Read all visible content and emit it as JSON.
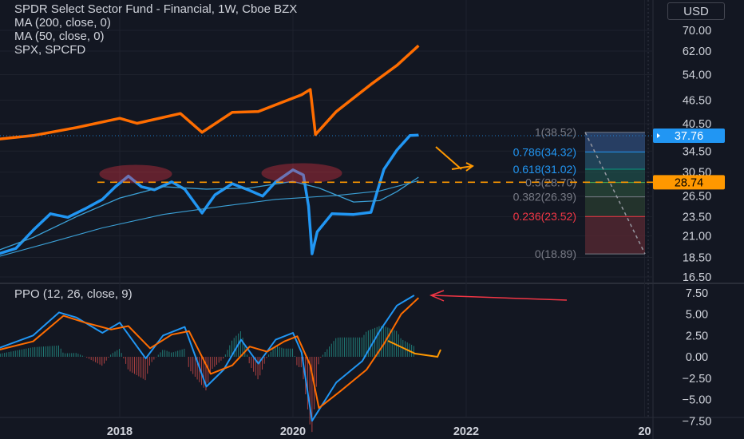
{
  "header": {
    "title": "SPDR Select Sector Fund - Financial, 1W, Cboe BZX",
    "indicators": [
      "MA (200, close, 0)",
      "MA (50, close, 0)",
      "SPX, SPCFD"
    ],
    "currency": "USD"
  },
  "price_badges": {
    "last": "37.76",
    "level": "28.74"
  },
  "colors": {
    "price": "#2196f3",
    "spx": "#ff6d00",
    "ma": "#3ba0d6",
    "dashed_level": "#ff9800",
    "fib_red": "#f23645",
    "fib_blue": "#2196f3",
    "ppo_line": "#2196f3",
    "ppo_signal": "#ff6d00",
    "background": "#131722"
  },
  "chart_data": [
    {
      "type": "line",
      "title": "SPDR Select Sector Fund - Financial, 1W, Cboe BZX",
      "ylabel": "USD",
      "yaxis_scale": "log",
      "ylim": [
        16.5,
        70
      ],
      "y_ticks": [
        "70.00",
        "62.00",
        "54.00",
        "46.50",
        "40.50",
        "34.50",
        "30.50",
        "26.50",
        "23.50",
        "21.00",
        "18.50",
        "16.50"
      ],
      "x_ticks": [
        "2018",
        "2020",
        "2022",
        "20"
      ],
      "series": [
        {
          "name": "SPDR Select Sector Fund - Financial",
          "points": [
            [
              2016.6,
              18.9
            ],
            [
              2016.8,
              19.5
            ],
            [
              2017.0,
              21.7
            ],
            [
              2017.2,
              23.9
            ],
            [
              2017.4,
              23.4
            ],
            [
              2017.6,
              24.6
            ],
            [
              2017.8,
              26.0
            ],
            [
              2017.95,
              28.0
            ],
            [
              2018.1,
              29.8
            ],
            [
              2018.25,
              28.0
            ],
            [
              2018.4,
              27.5
            ],
            [
              2018.6,
              28.8
            ],
            [
              2018.75,
              27.6
            ],
            [
              2018.95,
              24.0
            ],
            [
              2019.1,
              26.7
            ],
            [
              2019.3,
              28.5
            ],
            [
              2019.5,
              27.4
            ],
            [
              2019.65,
              26.5
            ],
            [
              2019.8,
              28.8
            ],
            [
              2020.0,
              30.9
            ],
            [
              2020.12,
              30.0
            ],
            [
              2020.18,
              25.0
            ],
            [
              2020.22,
              18.9
            ],
            [
              2020.28,
              21.5
            ],
            [
              2020.45,
              23.9
            ],
            [
              2020.7,
              23.8
            ],
            [
              2020.9,
              24.1
            ],
            [
              2021.05,
              31.0
            ],
            [
              2021.2,
              34.7
            ],
            [
              2021.35,
              37.8
            ],
            [
              2021.45,
              37.9
            ]
          ]
        },
        {
          "name": "MA (50, close, 0)",
          "points": [
            [
              2016.6,
              19.3
            ],
            [
              2017.0,
              20.8
            ],
            [
              2017.5,
              23.5
            ],
            [
              2018.0,
              26.2
            ],
            [
              2018.5,
              28.0
            ],
            [
              2019.0,
              27.6
            ],
            [
              2019.5,
              27.8
            ],
            [
              2020.0,
              28.9
            ],
            [
              2020.3,
              27.8
            ],
            [
              2020.7,
              25.6
            ],
            [
              2021.0,
              25.8
            ],
            [
              2021.2,
              27.2
            ],
            [
              2021.45,
              29.6
            ]
          ]
        },
        {
          "name": "MA (200, close, 0)",
          "points": [
            [
              2016.6,
              18.6
            ],
            [
              2017.2,
              20.2
            ],
            [
              2017.8,
              22.0
            ],
            [
              2018.5,
              23.8
            ],
            [
              2019.2,
              25.0
            ],
            [
              2019.8,
              26.0
            ],
            [
              2020.5,
              26.6
            ],
            [
              2021.0,
              27.3
            ],
            [
              2021.45,
              29.0
            ]
          ]
        },
        {
          "name": "SPX, SPCFD",
          "points": [
            [
              2016.6,
              37.0
            ],
            [
              2017.0,
              37.8
            ],
            [
              2017.5,
              39.6
            ],
            [
              2018.0,
              41.8
            ],
            [
              2018.2,
              40.6
            ],
            [
              2018.7,
              43.0
            ],
            [
              2018.95,
              38.5
            ],
            [
              2019.3,
              43.3
            ],
            [
              2019.6,
              43.5
            ],
            [
              2020.1,
              48.0
            ],
            [
              2020.2,
              49.5
            ],
            [
              2020.26,
              38.0
            ],
            [
              2020.5,
              43.5
            ],
            [
              2020.9,
              51.0
            ],
            [
              2021.2,
              57.0
            ],
            [
              2021.45,
              64.0
            ]
          ]
        }
      ],
      "annotations": {
        "fib_levels": [
          {
            "ratio": "1",
            "value": "38.52"
          },
          {
            "ratio": "0.786",
            "value": "34.32"
          },
          {
            "ratio": "0.618",
            "value": "31.02"
          },
          {
            "ratio": "0.5",
            "value": "28.70"
          },
          {
            "ratio": "0.382",
            "value": "26.39"
          },
          {
            "ratio": "0.236",
            "value": "23.52"
          },
          {
            "ratio": "0",
            "value": "18.89"
          }
        ],
        "horizontal_level": 28.74,
        "last_price": 37.76
      }
    },
    {
      "type": "line",
      "title": "PPO (12, 26, close, 9)",
      "ylim": [
        -7.5,
        7.5
      ],
      "y_ticks": [
        "7.50",
        "5.00",
        "2.50",
        "0.00",
        "−2.50",
        "−5.00",
        "−7.50"
      ],
      "series": [
        {
          "name": "PPO",
          "points": [
            [
              2016.6,
              1.0
            ],
            [
              2017.0,
              2.5
            ],
            [
              2017.3,
              5.2
            ],
            [
              2017.5,
              4.6
            ],
            [
              2017.8,
              2.8
            ],
            [
              2018.0,
              4.0
            ],
            [
              2018.3,
              -0.2
            ],
            [
              2018.5,
              2.5
            ],
            [
              2018.75,
              3.5
            ],
            [
              2019.0,
              -3.5
            ],
            [
              2019.2,
              -1.5
            ],
            [
              2019.4,
              2.0
            ],
            [
              2019.6,
              -0.8
            ],
            [
              2019.8,
              2.0
            ],
            [
              2020.0,
              2.8
            ],
            [
              2020.1,
              0.5
            ],
            [
              2020.22,
              -7.5
            ],
            [
              2020.5,
              -3.0
            ],
            [
              2020.8,
              -0.5
            ],
            [
              2021.0,
              3.0
            ],
            [
              2021.2,
              6.0
            ],
            [
              2021.4,
              7.2
            ]
          ]
        },
        {
          "name": "Signal",
          "points": [
            [
              2016.6,
              0.8
            ],
            [
              2017.0,
              1.8
            ],
            [
              2017.35,
              4.8
            ],
            [
              2017.6,
              4.0
            ],
            [
              2017.9,
              3.2
            ],
            [
              2018.1,
              3.6
            ],
            [
              2018.35,
              1.0
            ],
            [
              2018.6,
              2.6
            ],
            [
              2018.8,
              3.0
            ],
            [
              2019.05,
              -2.0
            ],
            [
              2019.3,
              -1.0
            ],
            [
              2019.5,
              1.2
            ],
            [
              2019.7,
              0.6
            ],
            [
              2019.9,
              1.8
            ],
            [
              2020.05,
              2.4
            ],
            [
              2020.2,
              -1.0
            ],
            [
              2020.3,
              -6.0
            ],
            [
              2020.55,
              -4.0
            ],
            [
              2020.85,
              -1.5
            ],
            [
              2021.05,
              1.5
            ],
            [
              2021.25,
              5.0
            ],
            [
              2021.45,
              6.9
            ]
          ]
        }
      ]
    }
  ]
}
